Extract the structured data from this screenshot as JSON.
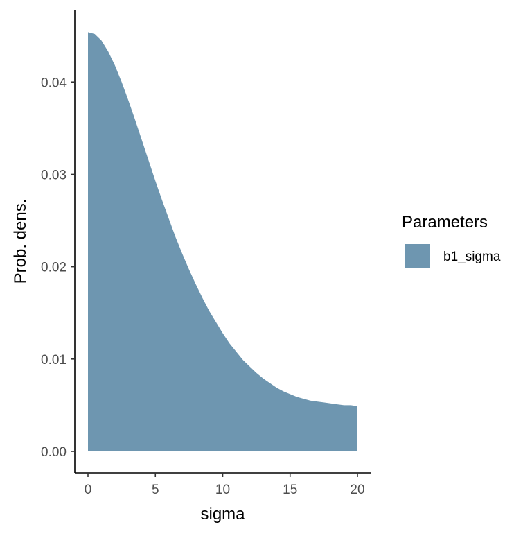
{
  "chart_data": {
    "type": "area",
    "xlabel": "sigma",
    "ylabel": "Prob. dens.",
    "xlim": [
      0,
      20
    ],
    "ylim": [
      0,
      0.0455
    ],
    "x_ticks": [
      0,
      5,
      10,
      15,
      20
    ],
    "x_tick_labels": [
      "0",
      "5",
      "10",
      "15",
      "20"
    ],
    "y_ticks": [
      0,
      0.01,
      0.02,
      0.03,
      0.04
    ],
    "y_tick_labels": [
      "0.00",
      "0.01",
      "0.02",
      "0.03",
      "0.04"
    ],
    "grid": false,
    "legend": {
      "title": "Parameters",
      "position": "right",
      "entries": [
        {
          "name": "b1_sigma",
          "color": "#6e96b0"
        }
      ]
    },
    "series": [
      {
        "name": "b1_sigma",
        "color": "#6e96b0",
        "x": [
          0,
          0.5,
          1,
          1.5,
          2,
          2.5,
          3,
          3.5,
          4,
          4.5,
          5,
          5.5,
          6,
          6.5,
          7,
          7.5,
          8,
          8.5,
          9,
          9.5,
          10,
          10.5,
          11,
          11.5,
          12,
          12.5,
          13,
          13.5,
          14,
          14.5,
          15,
          15.5,
          16,
          16.5,
          17,
          17.5,
          18,
          18.5,
          19,
          19.5,
          20
        ],
        "y": [
          0.0454,
          0.0452,
          0.0445,
          0.0433,
          0.0418,
          0.04,
          0.038,
          0.0359,
          0.0337,
          0.0315,
          0.0293,
          0.0272,
          0.0252,
          0.0232,
          0.0214,
          0.0197,
          0.0181,
          0.0166,
          0.0152,
          0.014,
          0.0128,
          0.0117,
          0.0108,
          0.0099,
          0.0092,
          0.0085,
          0.0079,
          0.0074,
          0.0069,
          0.0065,
          0.0062,
          0.0059,
          0.0057,
          0.0055,
          0.0054,
          0.0053,
          0.0052,
          0.0051,
          0.005,
          0.005,
          0.0049
        ]
      }
    ]
  }
}
